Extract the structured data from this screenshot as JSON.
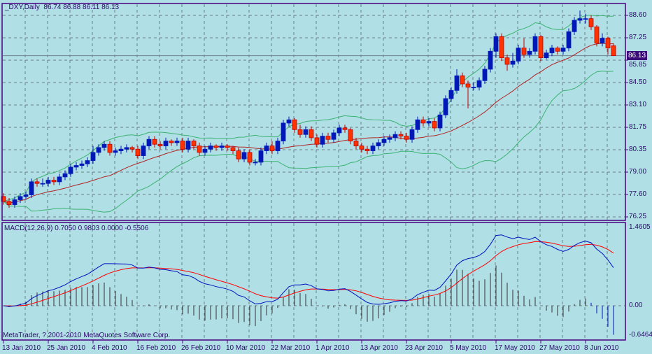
{
  "header": {
    "symbol_label": "_DXY,Daily",
    "ohlc_text": "86.74 86.88 86.11 86.13"
  },
  "macd_header": {
    "label": "MACD(12,26,9)",
    "values_text": "0.7050 0.9803 0.0000 -0.5506"
  },
  "copyright": "MetaTrader, ? 2001-2010 MetaQuotes Software Corp.",
  "current_price_label": "86.13",
  "colors": {
    "background": "#b0dfe5",
    "frame": "#4b0082",
    "bull": "#0018b8",
    "bear": "#ff3300",
    "ma": "#b22222",
    "bands": "#3cb371",
    "macd": "#0010c0",
    "signal": "#ff0000",
    "histogram": "#333333"
  },
  "chart_data": [
    {
      "type": "candlestick",
      "title": "_DXY,Daily",
      "indicators": [
        "SMA(20)",
        "Bollinger Bands(20,2)"
      ],
      "y_ticks": [
        "88.60",
        "87.25",
        "85.85",
        "84.50",
        "83.10",
        "81.75",
        "80.35",
        "79.00",
        "77.60",
        "76.25"
      ],
      "ylim": [
        76.25,
        88.6
      ],
      "x_ticks": [
        "13 Jan 2010",
        "25 Jan 2010",
        "4 Feb 2010",
        "16 Feb 2010",
        "26 Feb 2010",
        "10 Mar 2010",
        "22 Mar 2010",
        "1 Apr 2010",
        "13 Apr 2010",
        "23 Apr 2010",
        "5 May 2010",
        "17 May 2010",
        "27 May 2010",
        "8 Jun 2010"
      ],
      "x_tick_every_bars": 8,
      "grid": true,
      "ohlc": [
        [
          77.5,
          77.7,
          77.0,
          77.2
        ],
        [
          77.2,
          77.4,
          76.8,
          77.0
        ],
        [
          77.0,
          77.5,
          76.8,
          77.3
        ],
        [
          77.3,
          77.7,
          77.1,
          77.5
        ],
        [
          77.5,
          77.8,
          77.3,
          77.6
        ],
        [
          77.6,
          78.6,
          77.4,
          78.4
        ],
        [
          78.4,
          78.6,
          78.1,
          78.3
        ],
        [
          78.3,
          78.6,
          78.1,
          78.3
        ],
        [
          78.3,
          78.7,
          78.1,
          78.5
        ],
        [
          78.5,
          78.7,
          78.2,
          78.4
        ],
        [
          78.4,
          78.9,
          78.2,
          78.7
        ],
        [
          78.7,
          79.1,
          78.5,
          78.9
        ],
        [
          78.9,
          79.5,
          78.7,
          79.3
        ],
        [
          79.3,
          79.6,
          79.1,
          79.4
        ],
        [
          79.4,
          79.7,
          79.2,
          79.5
        ],
        [
          79.5,
          79.9,
          79.3,
          79.7
        ],
        [
          79.7,
          80.6,
          79.5,
          80.2
        ],
        [
          80.2,
          80.7,
          80.0,
          80.5
        ],
        [
          80.5,
          80.9,
          80.3,
          80.7
        ],
        [
          80.7,
          80.9,
          80.0,
          80.2
        ],
        [
          80.2,
          80.5,
          80.0,
          80.3
        ],
        [
          80.3,
          80.6,
          80.1,
          80.4
        ],
        [
          80.4,
          80.7,
          80.2,
          80.5
        ],
        [
          80.5,
          80.6,
          80.2,
          80.4
        ],
        [
          80.4,
          80.6,
          79.8,
          80.0
        ],
        [
          80.0,
          80.8,
          79.8,
          80.6
        ],
        [
          80.6,
          81.2,
          80.4,
          81.0
        ],
        [
          81.0,
          81.2,
          80.5,
          80.7
        ],
        [
          80.7,
          80.9,
          80.4,
          80.6
        ],
        [
          80.6,
          81.1,
          80.4,
          80.9
        ],
        [
          80.9,
          81.0,
          80.6,
          80.8
        ],
        [
          80.8,
          81.1,
          80.6,
          80.9
        ],
        [
          80.9,
          81.1,
          80.2,
          80.4
        ],
        [
          80.4,
          81.1,
          80.2,
          80.9
        ],
        [
          80.9,
          81.0,
          80.4,
          80.6
        ],
        [
          80.6,
          80.8,
          80.0,
          80.2
        ],
        [
          80.2,
          80.6,
          80.0,
          80.4
        ],
        [
          80.4,
          80.8,
          80.2,
          80.6
        ],
        [
          80.6,
          80.7,
          80.3,
          80.5
        ],
        [
          80.5,
          80.8,
          80.3,
          80.6
        ],
        [
          80.6,
          80.7,
          80.3,
          80.5
        ],
        [
          80.5,
          80.6,
          80.1,
          80.3
        ],
        [
          80.3,
          80.5,
          79.6,
          79.8
        ],
        [
          79.8,
          80.4,
          79.6,
          80.2
        ],
        [
          80.2,
          80.4,
          79.4,
          79.6
        ],
        [
          79.6,
          79.8,
          79.4,
          79.6
        ],
        [
          79.6,
          80.5,
          79.4,
          80.3
        ],
        [
          80.3,
          80.8,
          80.1,
          80.6
        ],
        [
          80.6,
          80.9,
          80.1,
          80.3
        ],
        [
          80.3,
          81.1,
          80.1,
          80.9
        ],
        [
          80.9,
          82.2,
          80.7,
          82.0
        ],
        [
          82.0,
          82.4,
          81.8,
          82.2
        ],
        [
          82.2,
          82.3,
          81.4,
          81.6
        ],
        [
          81.6,
          81.9,
          81.1,
          81.3
        ],
        [
          81.3,
          81.8,
          81.1,
          81.6
        ],
        [
          81.6,
          81.8,
          80.9,
          81.1
        ],
        [
          81.1,
          81.3,
          80.5,
          80.7
        ],
        [
          80.7,
          81.4,
          80.5,
          81.2
        ],
        [
          81.2,
          81.4,
          80.8,
          81.0
        ],
        [
          81.0,
          81.6,
          80.8,
          81.4
        ],
        [
          81.4,
          81.9,
          81.2,
          81.7
        ],
        [
          81.7,
          81.9,
          81.4,
          81.6
        ],
        [
          81.6,
          81.7,
          80.7,
          80.9
        ],
        [
          80.9,
          81.1,
          80.4,
          80.6
        ],
        [
          80.6,
          80.8,
          80.2,
          80.4
        ],
        [
          80.4,
          80.6,
          80.1,
          80.3
        ],
        [
          80.3,
          80.8,
          80.1,
          80.6
        ],
        [
          80.6,
          81.0,
          80.4,
          80.8
        ],
        [
          80.8,
          81.2,
          80.6,
          81.0
        ],
        [
          81.0,
          81.3,
          80.8,
          81.1
        ],
        [
          81.1,
          81.5,
          80.9,
          81.3
        ],
        [
          81.3,
          81.5,
          81.0,
          81.2
        ],
        [
          81.2,
          81.4,
          80.8,
          81.0
        ],
        [
          81.0,
          81.8,
          80.8,
          81.6
        ],
        [
          81.6,
          82.4,
          81.4,
          82.2
        ],
        [
          82.2,
          82.4,
          81.8,
          82.0
        ],
        [
          82.0,
          82.3,
          81.8,
          82.1
        ],
        [
          82.1,
          82.3,
          81.5,
          81.7
        ],
        [
          81.7,
          82.7,
          81.5,
          82.5
        ],
        [
          82.5,
          83.7,
          82.3,
          83.5
        ],
        [
          83.5,
          84.2,
          83.3,
          84.0
        ],
        [
          84.0,
          85.3,
          83.8,
          84.9
        ],
        [
          84.9,
          85.1,
          84.2,
          84.4
        ],
        [
          84.4,
          84.6,
          82.9,
          84.2
        ],
        [
          84.2,
          84.5,
          84.0,
          84.2
        ],
        [
          84.2,
          84.8,
          84.0,
          84.6
        ],
        [
          84.6,
          85.5,
          84.4,
          85.3
        ],
        [
          85.3,
          86.6,
          85.1,
          86.4
        ],
        [
          86.4,
          87.5,
          86.0,
          87.3
        ],
        [
          87.3,
          87.5,
          85.8,
          86.0
        ],
        [
          86.0,
          86.2,
          85.2,
          85.6
        ],
        [
          85.6,
          86.3,
          85.4,
          85.8
        ],
        [
          85.8,
          86.8,
          85.6,
          86.6
        ],
        [
          86.6,
          87.2,
          86.0,
          86.2
        ],
        [
          86.2,
          86.6,
          86.0,
          86.4
        ],
        [
          86.4,
          87.5,
          86.2,
          87.3
        ],
        [
          87.3,
          87.4,
          85.8,
          86.0
        ],
        [
          86.0,
          86.5,
          85.9,
          86.3
        ],
        [
          86.3,
          86.8,
          86.1,
          86.6
        ],
        [
          86.6,
          86.7,
          86.2,
          86.4
        ],
        [
          86.4,
          86.8,
          86.2,
          86.6
        ],
        [
          86.6,
          87.8,
          86.4,
          87.6
        ],
        [
          87.6,
          88.5,
          87.4,
          88.3
        ],
        [
          88.3,
          88.9,
          88.1,
          88.4
        ],
        [
          88.4,
          88.7,
          88.1,
          88.4
        ],
        [
          88.4,
          88.6,
          87.7,
          87.9
        ],
        [
          87.9,
          88.0,
          86.7,
          86.9
        ],
        [
          86.9,
          87.5,
          86.7,
          87.2
        ],
        [
          87.2,
          87.3,
          86.2,
          86.6
        ],
        [
          86.74,
          86.88,
          86.11,
          86.13
        ]
      ]
    },
    {
      "type": "line",
      "title": "MACD(12,26,9)",
      "series": [
        {
          "name": "MACD",
          "last": 0.705
        },
        {
          "name": "Signal",
          "last": 0.9803
        },
        {
          "name": "Histogram",
          "last": -0.5506
        }
      ],
      "y_ticks": [
        "1.4605",
        "0.00",
        "-0.6464"
      ],
      "ylim": [
        -0.6464,
        1.4605
      ]
    }
  ]
}
